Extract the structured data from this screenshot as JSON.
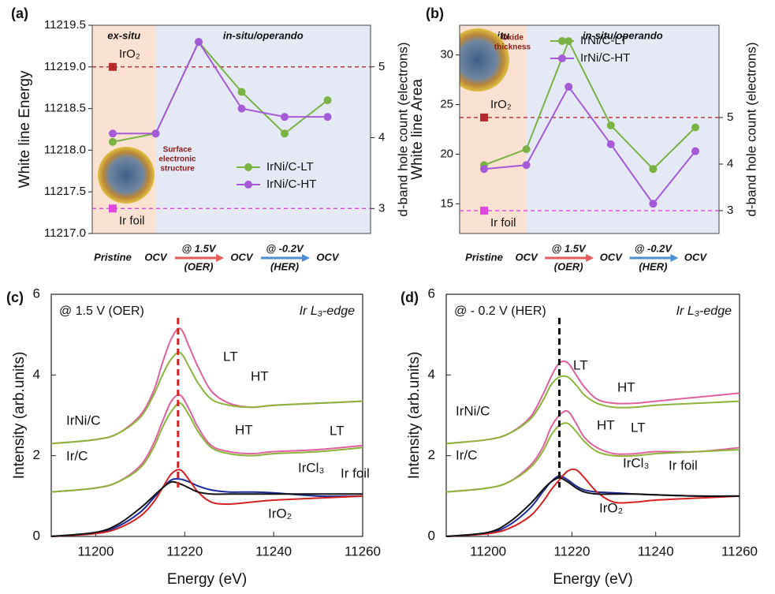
{
  "chart_data": [
    {
      "type": "line",
      "panel_label": "(a)",
      "ylabel": "White line Energy",
      "y2label": "d-band hole count (electrons)",
      "region_labels": [
        "ex-situ",
        "in-situ/operando"
      ],
      "categories": [
        "Pristine",
        "OCV",
        "@ 1.5V",
        "OCV",
        "@ -0.2V",
        "OCV"
      ],
      "x_sublabels": [
        null,
        null,
        "(OER)",
        null,
        "(HER)",
        null
      ],
      "x_arrow_colors": [
        null,
        null,
        "#e65a5a",
        null,
        "#4a8fd6",
        null
      ],
      "series": [
        {
          "name": "IrNi/C-LT",
          "color": "#7ab244",
          "values": [
            11218.1,
            11218.2,
            11219.3,
            11218.7,
            11218.2,
            11218.6
          ]
        },
        {
          "name": "IrNi/C-HT",
          "color": "#a55bd8",
          "values": [
            11218.2,
            11218.2,
            11219.3,
            11218.5,
            11218.4,
            11218.4
          ]
        }
      ],
      "references": [
        {
          "name": "IrO₂",
          "value": 11219.0,
          "color": "#b52a2a"
        },
        {
          "name": "Ir foil",
          "value": 11217.3,
          "color": "#e046e0"
        }
      ],
      "ylim": [
        11217,
        11219.5
      ],
      "yticks": [
        {
          "value": 11217,
          "label": "11217.0"
        },
        {
          "value": 11217.5,
          "label": "11217.5"
        },
        {
          "value": 11218,
          "label": "11218.0"
        },
        {
          "value": 11218.5,
          "label": "11218.5"
        },
        {
          "value": 11219,
          "label": "11219.0"
        },
        {
          "value": 11219.5,
          "label": "11219.5"
        }
      ],
      "y2lim": [
        2.647,
        5.588
      ],
      "y2ticks": [
        3,
        4,
        5
      ],
      "legend": "lower right",
      "inset_label": [
        "Surface",
        "electronic",
        "structure"
      ]
    },
    {
      "type": "line",
      "panel_label": "(b)",
      "ylabel": "White line Area",
      "y2label": "d-band hole count (electrons)",
      "region_labels": [
        "ex-situ",
        "in-situ/operando"
      ],
      "categories": [
        "Pristine",
        "OCV",
        "@ 1.5V",
        "OCV",
        "@ -0.2V",
        "OCV"
      ],
      "x_sublabels": [
        null,
        null,
        "(OER)",
        null,
        "(HER)",
        null
      ],
      "x_arrow_colors": [
        null,
        null,
        "#e65a5a",
        null,
        "#4a8fd6",
        null
      ],
      "series": [
        {
          "name": "IrNi/C-LT",
          "color": "#7ab244",
          "values": [
            18.9,
            20.5,
            31.4,
            22.9,
            18.5,
            22.7
          ]
        },
        {
          "name": "IrNi/C-HT",
          "color": "#a55bd8",
          "values": [
            18.5,
            18.9,
            26.8,
            21.0,
            15.0,
            20.3
          ]
        }
      ],
      "references": [
        {
          "name": "IrO₂",
          "value": 23.7,
          "color": "#b52a2a"
        },
        {
          "name": "Ir foil",
          "value": 14.3,
          "color": "#e046e0"
        }
      ],
      "ylim": [
        12,
        33
      ],
      "yticks": [
        15,
        20,
        25,
        30
      ],
      "y2lim": [
        2.51,
        6.98
      ],
      "y2ticks": [
        3,
        4,
        5
      ],
      "legend": "upper right",
      "inset_label": [
        "Oxide",
        "thickness"
      ]
    },
    {
      "type": "line",
      "panel_label": "(c)",
      "xlabel": "Energy (eV)",
      "ylabel": "Intensity (arb.units)",
      "condition": "@ 1.5 V (OER)",
      "edge": "Ir L₃-edge",
      "group_labels": [
        "IrNi/C",
        "Ir/C"
      ],
      "x": [
        11190,
        11200,
        11205,
        11210,
        11213,
        11215,
        11217,
        11219,
        11221,
        11223,
        11226,
        11230,
        11235,
        11240,
        11250,
        11260
      ],
      "series": [
        {
          "name": "LT",
          "color": "#e0609e",
          "values": [
            2.3,
            2.4,
            2.55,
            3.0,
            3.6,
            4.3,
            4.9,
            5.15,
            4.7,
            4.2,
            3.6,
            3.3,
            3.2,
            3.25,
            3.3,
            3.35
          ]
        },
        {
          "name": "HT",
          "color": "#8cb43a",
          "values": [
            2.3,
            2.4,
            2.55,
            2.95,
            3.5,
            4.0,
            4.4,
            4.55,
            4.2,
            3.8,
            3.4,
            3.25,
            3.2,
            3.25,
            3.3,
            3.35
          ]
        },
        {
          "name": "LT",
          "color": "#e0609e",
          "values": [
            1.1,
            1.2,
            1.35,
            1.75,
            2.3,
            2.85,
            3.35,
            3.5,
            3.15,
            2.7,
            2.25,
            2.1,
            2.05,
            2.1,
            2.15,
            2.25
          ]
        },
        {
          "name": "HT",
          "color": "#8cb43a",
          "values": [
            1.1,
            1.2,
            1.35,
            1.7,
            2.2,
            2.7,
            3.1,
            3.3,
            3.0,
            2.6,
            2.2,
            2.05,
            2.0,
            2.05,
            2.1,
            2.2
          ]
        },
        {
          "name": "IrCl₃",
          "color": "#1c2a9c",
          "values": [
            0,
            0.08,
            0.25,
            0.6,
            0.95,
            1.2,
            1.4,
            1.42,
            1.35,
            1.25,
            1.15,
            1.1,
            1.1,
            1.08,
            1.0,
            1.0
          ]
        },
        {
          "name": "IrO₂",
          "color": "#d42222",
          "values": [
            0,
            0.07,
            0.2,
            0.5,
            0.85,
            1.2,
            1.55,
            1.65,
            1.4,
            1.1,
            0.85,
            0.8,
            0.85,
            0.9,
            0.95,
            1.0
          ]
        },
        {
          "name": "Ir foil",
          "color": "#111111",
          "values": [
            0,
            0.1,
            0.3,
            0.7,
            1.0,
            1.2,
            1.35,
            1.3,
            1.2,
            1.1,
            1.05,
            1.05,
            1.05,
            1.05,
            1.05,
            1.05
          ]
        }
      ],
      "marker_line": {
        "x": 11218.5,
        "color": "#d42222"
      },
      "xlim": [
        11190,
        11260
      ],
      "xticks": [
        11200,
        11220,
        11240,
        11260
      ],
      "ylim": [
        0,
        6
      ],
      "yticks": [
        0,
        2,
        4,
        6
      ]
    },
    {
      "type": "line",
      "panel_label": "(d)",
      "xlabel": "Energy (eV)",
      "ylabel": "Intensity (arb.units)",
      "condition": "@ - 0.2 V (HER)",
      "edge": "Ir L₃-edge",
      "group_labels": [
        "IrNi/C",
        "Ir/C"
      ],
      "x": [
        11190,
        11200,
        11205,
        11210,
        11213,
        11215,
        11217,
        11219,
        11221,
        11223,
        11226,
        11230,
        11235,
        11240,
        11250,
        11260
      ],
      "series": [
        {
          "name": "LT",
          "color": "#e0609e",
          "values": [
            2.3,
            2.4,
            2.55,
            2.95,
            3.5,
            3.95,
            4.3,
            4.3,
            4.0,
            3.7,
            3.4,
            3.3,
            3.3,
            3.35,
            3.45,
            3.55
          ]
        },
        {
          "name": "HT",
          "color": "#8cb43a",
          "values": [
            2.3,
            2.4,
            2.55,
            2.9,
            3.35,
            3.75,
            3.95,
            3.95,
            3.75,
            3.5,
            3.3,
            3.2,
            3.2,
            3.25,
            3.3,
            3.35
          ]
        },
        {
          "name": "LT",
          "color": "#e0609e",
          "values": [
            1.1,
            1.2,
            1.35,
            1.75,
            2.2,
            2.7,
            3.0,
            3.1,
            2.8,
            2.45,
            2.2,
            2.05,
            2.05,
            2.1,
            2.1,
            2.2
          ]
        },
        {
          "name": "HT",
          "color": "#8cb43a",
          "values": [
            1.1,
            1.2,
            1.35,
            1.7,
            2.1,
            2.5,
            2.75,
            2.8,
            2.6,
            2.35,
            2.1,
            2.0,
            2.0,
            2.05,
            2.1,
            2.15
          ]
        },
        {
          "name": "IrCl₃",
          "color": "#1c2a9c",
          "values": [
            0,
            0.08,
            0.28,
            0.7,
            1.1,
            1.35,
            1.5,
            1.4,
            1.25,
            1.15,
            1.1,
            1.08,
            1.05,
            1.03,
            1.0,
            1.0
          ]
        },
        {
          "name": "IrO₂",
          "color": "#d42222",
          "values": [
            0,
            0.07,
            0.2,
            0.5,
            0.85,
            1.15,
            1.4,
            1.62,
            1.65,
            1.45,
            1.1,
            0.85,
            0.85,
            0.9,
            0.95,
            1.0
          ]
        },
        {
          "name": "Ir foil",
          "color": "#111111",
          "values": [
            0,
            0.1,
            0.35,
            0.8,
            1.15,
            1.35,
            1.45,
            1.35,
            1.2,
            1.1,
            1.05,
            1.05,
            1.05,
            1.03,
            1.0,
            1.0
          ]
        }
      ],
      "marker_line": {
        "x": 11217,
        "color": "#111111"
      },
      "xlim": [
        11190,
        11260
      ],
      "xticks": [
        11200,
        11220,
        11240,
        11260
      ],
      "ylim": [
        0,
        6
      ],
      "yticks": [
        0,
        2,
        4,
        6
      ]
    }
  ]
}
